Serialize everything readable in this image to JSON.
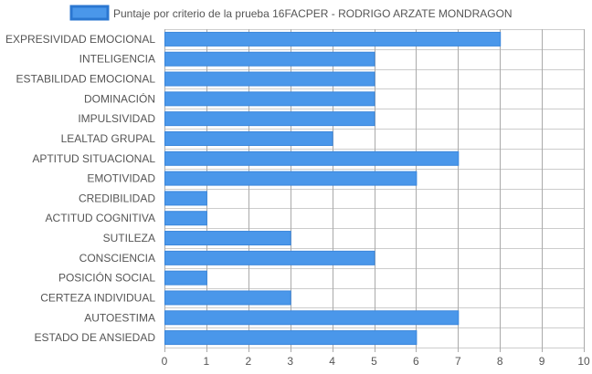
{
  "chart_data": {
    "type": "bar",
    "orientation": "horizontal",
    "categories": [
      "EXPRESIVIDAD EMOCIONAL",
      "INTELIGENCIA",
      "ESTABILIDAD EMOCIONAL",
      "DOMINACIÓN",
      "IMPULSIVIDAD",
      "LEALTAD GRUPAL",
      "APTITUD SITUACIONAL",
      "EMOTIVIDAD",
      "CREDIBILIDAD",
      "ACTITUD COGNITIVA",
      "SUTILEZA",
      "CONSCIENCIA",
      "POSICIÓN SOCIAL",
      "CERTEZA INDIVIDUAL",
      "AUTOESTIMA",
      "ESTADO DE ANSIEDAD"
    ],
    "series": [
      {
        "name": "Puntaje por criterio de la prueba 16FACPER - RODRIGO ARZATE MONDRAGON",
        "values": [
          8,
          5,
          5,
          5,
          5,
          4,
          7,
          6,
          1,
          1,
          3,
          5,
          1,
          3,
          7,
          6
        ]
      }
    ],
    "xlim": [
      0,
      10
    ],
    "xticks": [
      "0",
      "1",
      "2",
      "3",
      "4",
      "5",
      "6",
      "7",
      "8",
      "9",
      "10"
    ],
    "grid": true,
    "legend_position": "top",
    "colors": {
      "bar_fill": "#4a97ea",
      "bar_stroke": "#3a86db",
      "legend_box_fill": "#4a97ea",
      "legend_box_stroke": "#2b77d1"
    }
  }
}
